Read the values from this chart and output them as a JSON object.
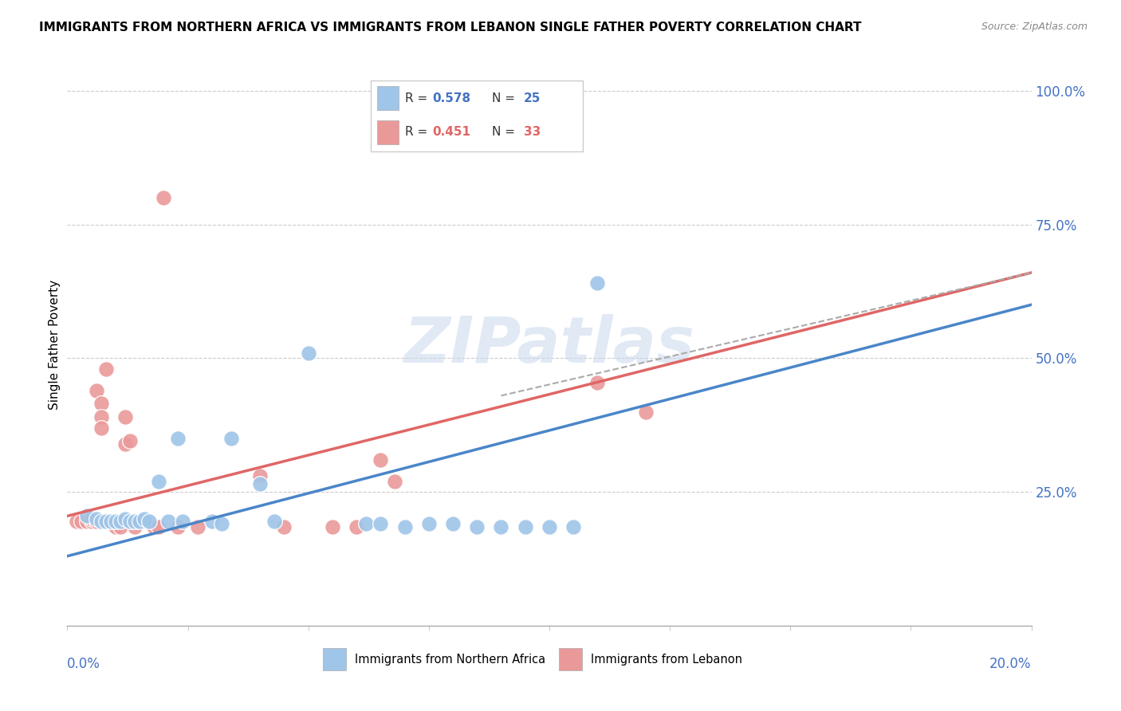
{
  "title": "IMMIGRANTS FROM NORTHERN AFRICA VS IMMIGRANTS FROM LEBANON SINGLE FATHER POVERTY CORRELATION CHART",
  "source": "Source: ZipAtlas.com",
  "ylabel": "Single Father Poverty",
  "color_blue": "#9fc5e8",
  "color_pink": "#ea9999",
  "color_blue_line": "#4a86c8",
  "color_pink_line": "#e06666",
  "color_gray_dashed": "#aaaaaa",
  "watermark": "ZIPatlas",
  "blue_scatter": [
    [
      0.004,
      0.205
    ],
    [
      0.006,
      0.2
    ],
    [
      0.007,
      0.195
    ],
    [
      0.008,
      0.195
    ],
    [
      0.009,
      0.195
    ],
    [
      0.01,
      0.195
    ],
    [
      0.011,
      0.195
    ],
    [
      0.012,
      0.2
    ],
    [
      0.013,
      0.195
    ],
    [
      0.014,
      0.195
    ],
    [
      0.015,
      0.195
    ],
    [
      0.016,
      0.2
    ],
    [
      0.017,
      0.195
    ],
    [
      0.019,
      0.27
    ],
    [
      0.021,
      0.195
    ],
    [
      0.023,
      0.35
    ],
    [
      0.024,
      0.195
    ],
    [
      0.03,
      0.195
    ],
    [
      0.032,
      0.19
    ],
    [
      0.034,
      0.35
    ],
    [
      0.04,
      0.265
    ],
    [
      0.043,
      0.195
    ],
    [
      0.05,
      0.51
    ],
    [
      0.062,
      0.19
    ],
    [
      0.065,
      0.19
    ],
    [
      0.07,
      0.185
    ],
    [
      0.075,
      0.19
    ],
    [
      0.08,
      0.19
    ],
    [
      0.085,
      0.185
    ],
    [
      0.09,
      0.185
    ],
    [
      0.095,
      0.185
    ],
    [
      0.1,
      0.185
    ],
    [
      0.105,
      0.185
    ],
    [
      0.11,
      0.64
    ]
  ],
  "pink_scatter": [
    [
      0.002,
      0.195
    ],
    [
      0.003,
      0.195
    ],
    [
      0.004,
      0.195
    ],
    [
      0.005,
      0.195
    ],
    [
      0.005,
      0.2
    ],
    [
      0.006,
      0.195
    ],
    [
      0.006,
      0.44
    ],
    [
      0.007,
      0.415
    ],
    [
      0.007,
      0.39
    ],
    [
      0.007,
      0.37
    ],
    [
      0.008,
      0.48
    ],
    [
      0.008,
      0.195
    ],
    [
      0.009,
      0.195
    ],
    [
      0.01,
      0.195
    ],
    [
      0.01,
      0.185
    ],
    [
      0.011,
      0.185
    ],
    [
      0.012,
      0.39
    ],
    [
      0.012,
      0.34
    ],
    [
      0.013,
      0.345
    ],
    [
      0.014,
      0.185
    ],
    [
      0.018,
      0.185
    ],
    [
      0.019,
      0.185
    ],
    [
      0.02,
      0.8
    ],
    [
      0.023,
      0.185
    ],
    [
      0.027,
      0.185
    ],
    [
      0.04,
      0.28
    ],
    [
      0.045,
      0.185
    ],
    [
      0.055,
      0.185
    ],
    [
      0.06,
      0.185
    ],
    [
      0.065,
      0.31
    ],
    [
      0.068,
      0.27
    ],
    [
      0.11,
      0.455
    ],
    [
      0.12,
      0.4
    ]
  ],
  "xlim": [
    0.0,
    0.2
  ],
  "ylim": [
    0.0,
    1.05
  ],
  "blue_line": [
    [
      0.0,
      0.13
    ],
    [
      0.2,
      0.6
    ]
  ],
  "pink_line": [
    [
      0.0,
      0.205
    ],
    [
      0.2,
      0.66
    ]
  ],
  "dashed_line": [
    [
      0.09,
      0.43
    ],
    [
      0.2,
      0.66
    ]
  ],
  "figsize": [
    14.06,
    8.92
  ],
  "dpi": 100
}
